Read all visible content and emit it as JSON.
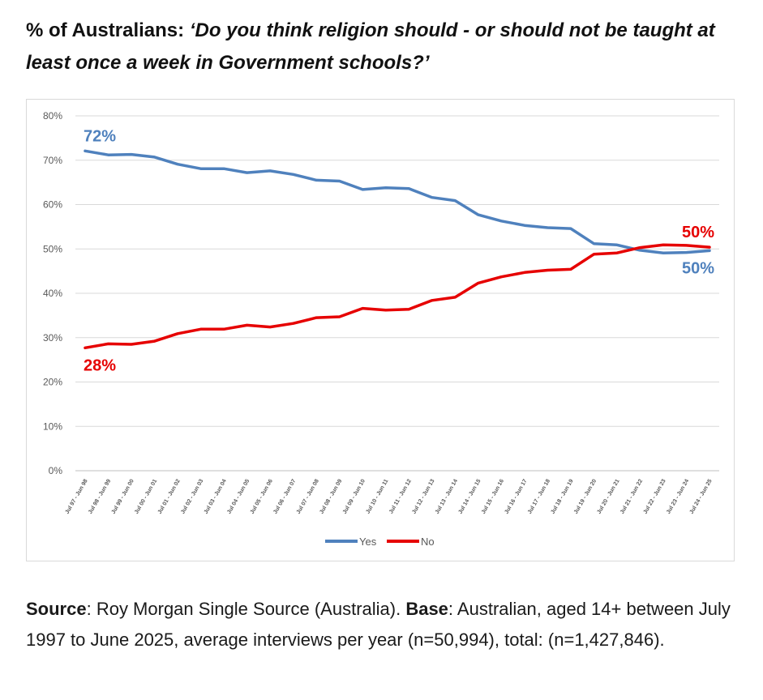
{
  "title": {
    "prefix": "% of Australians:",
    "question": "‘Do you think religion should - or should not be taught at least once a week in Government schools?’"
  },
  "source_note": {
    "source_label": "Source",
    "source_text": ": Roy Morgan Single Source (Australia). ",
    "base_label": "Base",
    "base_text": ": Australian, aged 14+ between July 1997 to June 2025, average interviews per year (n=50,994), total: (n=1,427,846)."
  },
  "chart_data": {
    "type": "line",
    "categories": [
      "Jul 97 - Jun 98",
      "Jul 98 - Jun 99",
      "Jul 99 - Jun 00",
      "Jul 00 - Jun 01",
      "Jul 01 - Jun 02",
      "Jul 02 - Jun 03",
      "Jul 03 - Jun 04",
      "Jul 04 - Jun 05",
      "Jul 05 - Jun 06",
      "Jul 06 - Jun 07",
      "Jul 07 - Jun 08",
      "Jul 08 - Jun 09",
      "Jul 09 - Jun 10",
      "Jul 10 - Jun 11",
      "Jul 11 - Jun 12",
      "Jul 12 - Jun 13",
      "Jul 13 - Jun 14",
      "Jul 14 - Jun 15",
      "Jul 15 - Jun 16",
      "Jul 16 - Jun 17",
      "Jul 17 - Jun 18",
      "Jul 18 - Jun 19",
      "Jul 19 - Jun 20",
      "Jul 20 - Jun 21",
      "Jul 21 - Jun 22",
      "Jul 22 - Jun 23",
      "Jul 23 - Jun 24",
      "Jul 24 - Jun 25"
    ],
    "series": [
      {
        "name": "Yes",
        "color": "#4f81bd",
        "values": [
          72.1,
          71.2,
          71.3,
          70.7,
          69.1,
          68.1,
          68.1,
          67.2,
          67.6,
          66.8,
          65.5,
          65.3,
          63.4,
          63.8,
          63.6,
          61.6,
          60.9,
          57.7,
          56.3,
          55.3,
          54.8,
          54.6,
          51.2,
          50.9,
          49.7,
          49.1,
          49.2,
          49.6
        ]
      },
      {
        "name": "No",
        "color": "#e60000",
        "values": [
          27.7,
          28.6,
          28.5,
          29.2,
          30.9,
          31.9,
          31.9,
          32.8,
          32.4,
          33.2,
          34.5,
          34.7,
          36.6,
          36.2,
          36.4,
          38.4,
          39.1,
          42.3,
          43.7,
          44.7,
          45.2,
          45.4,
          48.8,
          49.1,
          50.3,
          50.9,
          50.8,
          50.4
        ]
      }
    ],
    "ylim": [
      0,
      80
    ],
    "yticks": [
      0,
      10,
      20,
      30,
      40,
      50,
      60,
      70,
      80
    ],
    "ytick_suffix": "%",
    "grid": true,
    "legend": "bottom-center",
    "annotations": [
      {
        "text": "72%",
        "series": "Yes",
        "anchor": "start",
        "color": "#4f81bd"
      },
      {
        "text": "28%",
        "series": "No",
        "anchor": "start",
        "color": "#e60000"
      },
      {
        "text": "50%",
        "series": "No",
        "anchor": "end",
        "color": "#e60000"
      },
      {
        "text": "50%",
        "series": "Yes",
        "anchor": "end",
        "color": "#4f81bd"
      }
    ]
  }
}
